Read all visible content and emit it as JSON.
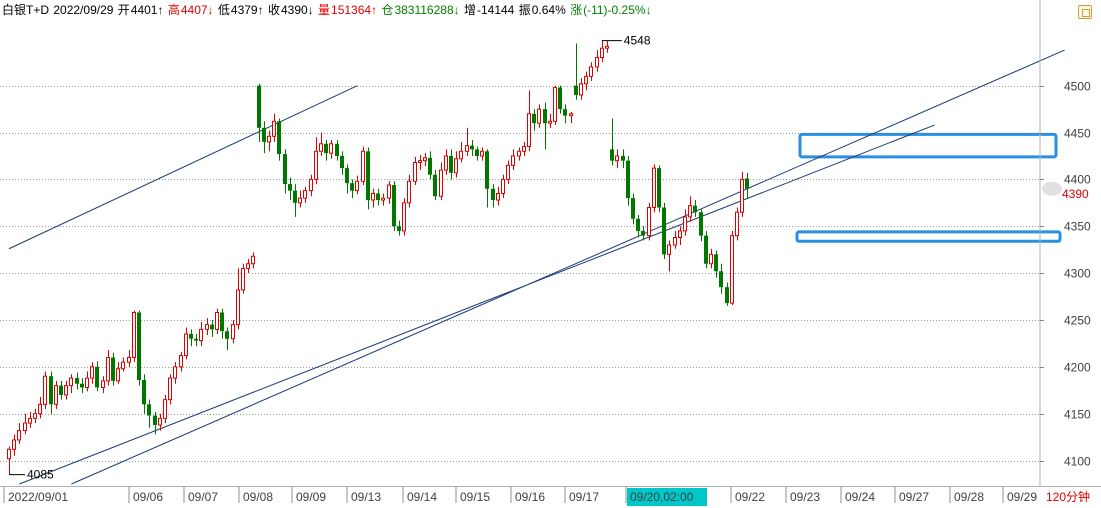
{
  "header": {
    "symbol": "白银T+D",
    "date": "2022/09/29",
    "open_label": "开",
    "open": "4401↑",
    "high_label": "高",
    "high": "4407↓",
    "low_label": "低",
    "low": "4379↑",
    "close_label": "收",
    "close": "4390↓",
    "volume_label": "量",
    "volume": "151364↑",
    "oi_label": "仓",
    "oi": "383116288↓",
    "oi_change_label": "增",
    "oi_change": "-14144",
    "amplitude_label": "振",
    "amplitude": "0.64%",
    "change_label": "涨",
    "change": "(-11)-0.25%↓"
  },
  "period": "120分钟",
  "last_price_tag": "4390",
  "crosshair_time": "09/20,02:00",
  "high_marker": "4548",
  "low_marker": "4085",
  "colors": {
    "up": "#e00000",
    "down": "#007800",
    "trendline": "#1a3a7a",
    "highlight_box": "#2a8fe0",
    "crosshair_tag": "#00c8c8"
  },
  "chart_data": {
    "type": "candlestick",
    "ylim": [
      4075,
      4585
    ],
    "y_ticks": [
      4100,
      4150,
      4200,
      4250,
      4300,
      4350,
      4400,
      4450,
      4500
    ],
    "x_tick_labels": [
      "2022/09/01",
      "09/06",
      "09/07",
      "09/08",
      "09/09",
      "09/13",
      "09/14",
      "09/15",
      "09/16",
      "09/17",
      "09/20,02:00",
      "09/22",
      "09/23",
      "09/24",
      "09/27",
      "09/28",
      "09/29"
    ],
    "grid": "horizontal dotted",
    "candles": [
      [
        4102,
        4112,
        4085,
        4115
      ],
      [
        4112,
        4122,
        4105,
        4128
      ],
      [
        4122,
        4132,
        4118,
        4140
      ],
      [
        4132,
        4140,
        4128,
        4150
      ],
      [
        4140,
        4145,
        4135,
        4152
      ],
      [
        4145,
        4150,
        4140,
        4155
      ],
      [
        4150,
        4160,
        4145,
        4168
      ],
      [
        4160,
        4190,
        4155,
        4195
      ],
      [
        4190,
        4160,
        4150,
        4195
      ],
      [
        4160,
        4180,
        4155,
        4185
      ],
      [
        4180,
        4170,
        4165,
        4185
      ],
      [
        4170,
        4180,
        4165,
        4185
      ],
      [
        4180,
        4188,
        4172,
        4192
      ],
      [
        4188,
        4182,
        4176,
        4194
      ],
      [
        4182,
        4178,
        4172,
        4188
      ],
      [
        4178,
        4188,
        4174,
        4195
      ],
      [
        4188,
        4200,
        4182,
        4205
      ],
      [
        4200,
        4178,
        4174,
        4206
      ],
      [
        4178,
        4185,
        4172,
        4190
      ],
      [
        4185,
        4210,
        4180,
        4218
      ],
      [
        4210,
        4185,
        4180,
        4215
      ],
      [
        4185,
        4198,
        4182,
        4205
      ],
      [
        4198,
        4205,
        4195,
        4210
      ],
      [
        4205,
        4210,
        4200,
        4218
      ],
      [
        4210,
        4258,
        4205,
        4260
      ],
      [
        4258,
        4186,
        4180,
        4260
      ],
      [
        4186,
        4160,
        4150,
        4192
      ],
      [
        4160,
        4148,
        4135,
        4165
      ],
      [
        4148,
        4138,
        4128,
        4152
      ],
      [
        4138,
        4145,
        4132,
        4150
      ],
      [
        4145,
        4165,
        4140,
        4170
      ],
      [
        4165,
        4188,
        4160,
        4192
      ],
      [
        4188,
        4200,
        4182,
        4205
      ],
      [
        4200,
        4212,
        4195,
        4216
      ],
      [
        4212,
        4235,
        4208,
        4242
      ],
      [
        4235,
        4230,
        4222,
        4240
      ],
      [
        4230,
        4228,
        4222,
        4235
      ],
      [
        4228,
        4240,
        4222,
        4248
      ],
      [
        4240,
        4245,
        4234,
        4252
      ],
      [
        4245,
        4240,
        4232,
        4250
      ],
      [
        4240,
        4258,
        4235,
        4262
      ],
      [
        4258,
        4238,
        4230,
        4262
      ],
      [
        4238,
        4230,
        4218,
        4242
      ],
      [
        4230,
        4245,
        4225,
        4250
      ],
      [
        4245,
        4282,
        4240,
        4305
      ],
      [
        4282,
        4305,
        4278,
        4310
      ],
      [
        4305,
        4310,
        4300,
        4315
      ],
      [
        4310,
        4318,
        4305,
        4322
      ],
      [
        4500,
        4455,
        4440,
        4502
      ],
      [
        4455,
        4440,
        4428,
        4462
      ],
      [
        4440,
        4446,
        4430,
        4452
      ],
      [
        4446,
        4462,
        4440,
        4470
      ],
      [
        4462,
        4427,
        4420,
        4465
      ],
      [
        4427,
        4395,
        4385,
        4432
      ],
      [
        4395,
        4388,
        4378,
        4402
      ],
      [
        4388,
        4375,
        4360,
        4395
      ],
      [
        4375,
        4380,
        4370,
        4388
      ],
      [
        4380,
        4388,
        4375,
        4392
      ],
      [
        4388,
        4400,
        4382,
        4405
      ],
      [
        4400,
        4430,
        4395,
        4445
      ],
      [
        4430,
        4438,
        4425,
        4450
      ],
      [
        4438,
        4428,
        4420,
        4442
      ],
      [
        4428,
        4438,
        4422,
        4442
      ],
      [
        4438,
        4425,
        4420,
        4442
      ],
      [
        4425,
        4412,
        4405,
        4430
      ],
      [
        4412,
        4396,
        4385,
        4416
      ],
      [
        4396,
        4388,
        4380,
        4400
      ],
      [
        4388,
        4398,
        4384,
        4404
      ],
      [
        4398,
        4430,
        4394,
        4435
      ],
      [
        4430,
        4378,
        4368,
        4434
      ],
      [
        4378,
        4385,
        4370,
        4390
      ],
      [
        4385,
        4378,
        4372,
        4390
      ],
      [
        4378,
        4380,
        4372,
        4385
      ],
      [
        4380,
        4394,
        4374,
        4398
      ],
      [
        4394,
        4350,
        4345,
        4398
      ],
      [
        4350,
        4345,
        4340,
        4356
      ],
      [
        4345,
        4375,
        4340,
        4380
      ],
      [
        4375,
        4398,
        4370,
        4405
      ],
      [
        4398,
        4418,
        4394,
        4424
      ],
      [
        4418,
        4420,
        4410,
        4426
      ],
      [
        4420,
        4423,
        4414,
        4428
      ],
      [
        4423,
        4405,
        4400,
        4430
      ],
      [
        4405,
        4382,
        4378,
        4410
      ],
      [
        4382,
        4410,
        4378,
        4418
      ],
      [
        4410,
        4425,
        4405,
        4432
      ],
      [
        4425,
        4407,
        4400,
        4432
      ],
      [
        4407,
        4422,
        4402,
        4430
      ],
      [
        4422,
        4430,
        4418,
        4440
      ],
      [
        4430,
        4436,
        4425,
        4455
      ],
      [
        4436,
        4432,
        4425,
        4442
      ],
      [
        4432,
        4425,
        4420,
        4435
      ],
      [
        4425,
        4430,
        4420,
        4434
      ],
      [
        4430,
        4390,
        4370,
        4432
      ],
      [
        4390,
        4378,
        4370,
        4395
      ],
      [
        4378,
        4385,
        4372,
        4392
      ],
      [
        4385,
        4400,
        4380,
        4405
      ],
      [
        4400,
        4415,
        4395,
        4420
      ],
      [
        4415,
        4425,
        4410,
        4432
      ],
      [
        4425,
        4430,
        4420,
        4434
      ],
      [
        4430,
        4435,
        4425,
        4440
      ],
      [
        4435,
        4470,
        4430,
        4495
      ],
      [
        4470,
        4460,
        4452,
        4475
      ],
      [
        4460,
        4475,
        4455,
        4480
      ],
      [
        4475,
        4460,
        4432,
        4482
      ],
      [
        4460,
        4462,
        4455,
        4470
      ],
      [
        4462,
        4498,
        4458,
        4500
      ],
      [
        4498,
        4475,
        4470,
        4500
      ],
      [
        4475,
        4468,
        4460,
        4480
      ],
      [
        4468,
        4470,
        4460,
        4472
      ],
      [
        4500,
        4490,
        4485,
        4545
      ],
      [
        4490,
        4502,
        4485,
        4508
      ],
      [
        4502,
        4510,
        4495,
        4515
      ],
      [
        4510,
        4520,
        4505,
        4525
      ],
      [
        4520,
        4530,
        4515,
        4538
      ],
      [
        4530,
        4540,
        4525,
        4548
      ],
      [
        4540,
        4542,
        4535,
        4548
      ],
      [
        4432,
        4420,
        4415,
        4465
      ],
      [
        4420,
        4425,
        4412,
        4432
      ],
      [
        4425,
        4420,
        4412,
        4432
      ],
      [
        4420,
        4380,
        4372,
        4425
      ],
      [
        4380,
        4358,
        4352,
        4385
      ],
      [
        4358,
        4345,
        4338,
        4362
      ],
      [
        4345,
        4340,
        4335,
        4350
      ],
      [
        4340,
        4370,
        4335,
        4375
      ],
      [
        4370,
        4412,
        4365,
        4416
      ],
      [
        4412,
        4370,
        4365,
        4415
      ],
      [
        4370,
        4320,
        4315,
        4375
      ],
      [
        4320,
        4330,
        4302,
        4335
      ],
      [
        4330,
        4338,
        4326,
        4345
      ],
      [
        4338,
        4345,
        4330,
        4350
      ],
      [
        4345,
        4360,
        4340,
        4368
      ],
      [
        4360,
        4372,
        4355,
        4382
      ],
      [
        4372,
        4365,
        4360,
        4378
      ],
      [
        4365,
        4340,
        4334,
        4368
      ],
      [
        4340,
        4310,
        4305,
        4345
      ],
      [
        4310,
        4320,
        4305,
        4326
      ],
      [
        4320,
        4302,
        4295,
        4324
      ],
      [
        4302,
        4285,
        4278,
        4310
      ],
      [
        4285,
        4268,
        4265,
        4290
      ],
      [
        4268,
        4340,
        4266,
        4345
      ],
      [
        4340,
        4365,
        4335,
        4370
      ],
      [
        4365,
        4400,
        4360,
        4408
      ],
      [
        4401,
        4390,
        4379,
        4407
      ]
    ],
    "trendlines": [
      {
        "from": [
          0,
          4326
        ],
        "to": [
          67,
          4500
        ]
      },
      {
        "from": [
          12,
          4075
        ],
        "to": [
          203,
          4538
        ]
      },
      {
        "from": [
          2,
          4075
        ],
        "to": [
          178,
          4458
        ]
      }
    ],
    "zones": [
      {
        "y_low": 4424,
        "y_high": 4448
      },
      {
        "y_low": 4334,
        "y_high": 4344
      }
    ]
  }
}
